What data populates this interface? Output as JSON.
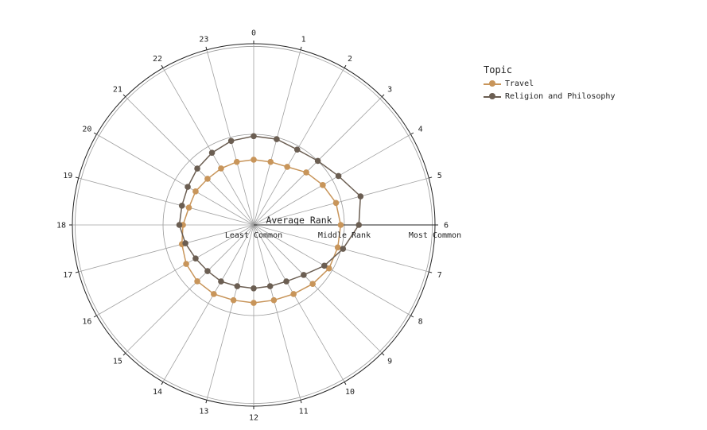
{
  "chart_data": {
    "type": "radar",
    "angular_tick_labels": [
      "0",
      "1",
      "2",
      "3",
      "4",
      "5",
      "6",
      "7",
      "8",
      "9",
      "10",
      "11",
      "12",
      "13",
      "14",
      "15",
      "16",
      "17",
      "18",
      "19",
      "20",
      "21",
      "22",
      "23"
    ],
    "radial_axis_title": "Average Rank",
    "radial_tick_labels": [
      "Least Common",
      "Middle Rank",
      "Most Common"
    ],
    "radial_tick_values": [
      0,
      0.5,
      1
    ],
    "rlim": [
      0,
      1
    ],
    "grid": true,
    "legend": {
      "title": "Topic",
      "placement": "top-right"
    },
    "series": [
      {
        "name": "Travel",
        "color": "#c8955a",
        "values": [
          0.36,
          0.36,
          0.37,
          0.41,
          0.44,
          0.47,
          0.48,
          0.48,
          0.48,
          0.46,
          0.44,
          0.43,
          0.43,
          0.43,
          0.44,
          0.44,
          0.43,
          0.41,
          0.39,
          0.37,
          0.37,
          0.36,
          0.36,
          0.36
        ]
      },
      {
        "name": "Religion and Philosophy",
        "color": "#6b5e52",
        "values": [
          0.49,
          0.49,
          0.48,
          0.5,
          0.54,
          0.61,
          0.58,
          0.51,
          0.45,
          0.39,
          0.36,
          0.35,
          0.35,
          0.35,
          0.36,
          0.36,
          0.37,
          0.39,
          0.41,
          0.41,
          0.42,
          0.44,
          0.46,
          0.48
        ]
      }
    ]
  }
}
